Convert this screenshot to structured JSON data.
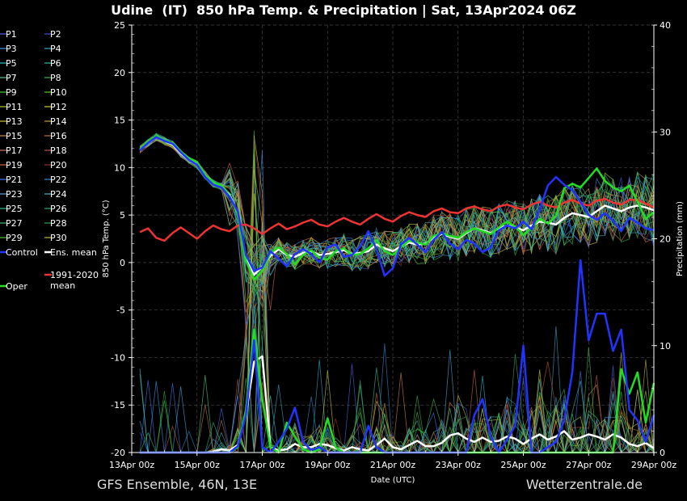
{
  "header": {
    "title": "Udine  (IT)  850 hPa Temp. & Precipitation | Sat, 13Apr2024 06Z"
  },
  "footer": {
    "model": "GFS Ensemble, 46N, 13E",
    "source": "Wetterzentrale.de"
  },
  "colors": {
    "background": "#000000",
    "grid": "#444444",
    "oper": "#22dd22",
    "control": "#2233ff",
    "ens_mean": "#ffffff",
    "climate": "#ee3333"
  },
  "chart_data": {
    "type": "line",
    "xlabel": "Date (UTC)",
    "ylabel_left": "850 hPa Temp. (°C)",
    "ylabel_right": "Precipitation (mm)",
    "ylim_left": [
      -20,
      25
    ],
    "ylim_right": [
      0,
      40
    ],
    "yticks_left": [
      -20,
      -15,
      -10,
      -5,
      0,
      5,
      10,
      15,
      20,
      25
    ],
    "yticks_right": [
      0,
      10,
      20,
      30,
      40
    ],
    "x_range_days": [
      0,
      16
    ],
    "x_ticks": [
      {
        "day": 0,
        "label": "13Apr 00z"
      },
      {
        "day": 2,
        "label": "15Apr 00z"
      },
      {
        "day": 4,
        "label": "17Apr 00z"
      },
      {
        "day": 6,
        "label": "19Apr 00z"
      },
      {
        "day": 8,
        "label": "21Apr 00z"
      },
      {
        "day": 10,
        "label": "23Apr 00z"
      },
      {
        "day": 12,
        "label": "25Apr 00z"
      },
      {
        "day": 14,
        "label": "27Apr 00z"
      },
      {
        "day": 16,
        "label": "29Apr 00z"
      }
    ],
    "grid": true,
    "legend_placement": "left",
    "legend": [
      {
        "name": "P1",
        "color": "#4466ee"
      },
      {
        "name": "P2",
        "color": "#3355dd"
      },
      {
        "name": "P3",
        "color": "#4499ee"
      },
      {
        "name": "P4",
        "color": "#33aacc"
      },
      {
        "name": "P5",
        "color": "#33bbcc"
      },
      {
        "name": "P6",
        "color": "#33bb99"
      },
      {
        "name": "P7",
        "color": "#44cc88"
      },
      {
        "name": "P8",
        "color": "#33bb55"
      },
      {
        "name": "P9",
        "color": "#44cc44"
      },
      {
        "name": "P10",
        "color": "#55cc22"
      },
      {
        "name": "P11",
        "color": "#aacc33"
      },
      {
        "name": "P12",
        "color": "#cccc33"
      },
      {
        "name": "P13",
        "color": "#ddbb44"
      },
      {
        "name": "P14",
        "color": "#cc9944"
      },
      {
        "name": "P15",
        "color": "#cc8844"
      },
      {
        "name": "P16",
        "color": "#bb7733"
      },
      {
        "name": "P17",
        "color": "#cc7755"
      },
      {
        "name": "P18",
        "color": "#bb5544"
      },
      {
        "name": "P19",
        "color": "#cc6644"
      },
      {
        "name": "P20",
        "color": "#993322"
      },
      {
        "name": "P21",
        "color": "#4477ee"
      },
      {
        "name": "P22",
        "color": "#3388cc"
      },
      {
        "name": "P23",
        "color": "#44aadd"
      },
      {
        "name": "P24",
        "color": "#44bbcc"
      },
      {
        "name": "P25",
        "color": "#33bb88"
      },
      {
        "name": "P26",
        "color": "#33aa66"
      },
      {
        "name": "P27",
        "color": "#44bb55"
      },
      {
        "name": "P28",
        "color": "#33aa44"
      },
      {
        "name": "P29",
        "color": "#55bb44"
      },
      {
        "name": "P30",
        "color": "#bbbb44"
      },
      {
        "name": "Control",
        "color": "#2233ff"
      },
      {
        "name": "Ens. mean",
        "color": "#ffffff"
      },
      {
        "name": "1991-2020\nmean",
        "color": "#ee3333"
      },
      {
        "name": "Oper",
        "color": "#22dd22"
      }
    ],
    "series": [
      {
        "name": "Ens. mean",
        "axis": "left",
        "x": [
          0.25,
          0.5,
          0.75,
          1,
          1.25,
          1.5,
          1.75,
          2,
          2.25,
          2.5,
          2.75,
          3,
          3.25,
          3.5,
          3.75,
          4,
          4.25,
          4.5,
          4.75,
          5,
          5.25,
          5.5,
          5.75,
          6,
          6.25,
          6.5,
          6.75,
          7,
          7.25,
          7.5,
          7.75,
          8,
          8.25,
          8.5,
          8.75,
          9,
          9.25,
          9.5,
          9.75,
          10,
          10.25,
          10.5,
          10.75,
          11,
          11.25,
          11.5,
          11.75,
          12,
          12.25,
          12.5,
          12.75,
          13,
          13.25,
          13.5,
          13.75,
          14,
          14.25,
          14.5,
          14.75,
          15,
          15.25,
          15.5,
          15.75,
          16
        ],
        "y": [
          11.9,
          12.6,
          13.2,
          12.8,
          12.4,
          11.5,
          10.8,
          10.3,
          9.2,
          8.3,
          8.0,
          7.1,
          5.2,
          0.5,
          -1.3,
          -0.4,
          0.7,
          1.4,
          0.8,
          0.6,
          1.0,
          1.2,
          0.8,
          0.9,
          1.1,
          1.3,
          0.9,
          1.0,
          1.2,
          1.9,
          1.5,
          1.2,
          1.7,
          2.1,
          1.9,
          2.0,
          2.6,
          3.0,
          2.7,
          2.5,
          3.1,
          3.6,
          3.4,
          3.1,
          3.6,
          3.9,
          3.7,
          3.4,
          3.9,
          4.3,
          4.2,
          4.0,
          4.7,
          5.2,
          5.0,
          4.8,
          5.4,
          6.0,
          5.7,
          5.4,
          5.8,
          6.0,
          5.8,
          5.5
        ]
      },
      {
        "name": "1991-2020\nmean",
        "axis": "left",
        "x": [
          0.25,
          0.5,
          0.75,
          1,
          1.25,
          1.5,
          1.75,
          2,
          2.25,
          2.5,
          2.75,
          3,
          3.25,
          3.5,
          3.75,
          4,
          4.25,
          4.5,
          4.75,
          5,
          5.25,
          5.5,
          5.75,
          6,
          6.25,
          6.5,
          6.75,
          7,
          7.25,
          7.5,
          7.75,
          8,
          8.25,
          8.5,
          8.75,
          9,
          9.25,
          9.5,
          9.75,
          10,
          10.25,
          10.5,
          10.75,
          11,
          11.25,
          11.5,
          11.75,
          12,
          12.25,
          12.5,
          12.75,
          13,
          13.25,
          13.5,
          13.75,
          14,
          14.25,
          14.5,
          14.75,
          15,
          15.25,
          15.5,
          15.75,
          16
        ],
        "y": [
          3.2,
          3.6,
          2.6,
          2.3,
          3.1,
          3.7,
          3.1,
          2.5,
          3.3,
          3.9,
          3.5,
          3.3,
          3.9,
          4.0,
          3.6,
          3.0,
          3.6,
          4.1,
          3.5,
          3.8,
          4.2,
          4.5,
          4.0,
          3.8,
          4.3,
          4.7,
          4.3,
          4.0,
          4.6,
          5.1,
          4.6,
          4.3,
          4.9,
          5.3,
          5.0,
          4.8,
          5.4,
          5.7,
          5.3,
          5.2,
          5.7,
          5.9,
          5.6,
          5.4,
          5.9,
          6.1,
          5.8,
          5.6,
          6.1,
          6.4,
          6.0,
          5.8,
          6.3,
          6.6,
          6.2,
          6.0,
          6.5,
          6.7,
          6.3,
          6.1,
          6.6,
          6.6,
          6.2,
          5.8
        ]
      },
      {
        "name": "Oper",
        "axis": "left",
        "x": [
          0.25,
          0.5,
          0.75,
          1,
          1.25,
          1.5,
          1.75,
          2,
          2.25,
          2.5,
          2.75,
          3,
          3.25,
          3.5,
          3.75,
          4,
          4.25,
          4.5,
          4.75,
          5,
          5.25,
          5.5,
          5.75,
          6,
          6.25,
          6.5,
          6.75,
          7,
          7.25,
          7.5,
          7.75,
          8,
          8.25,
          8.5,
          8.75,
          9,
          9.25,
          9.5,
          9.75,
          10,
          10.25,
          10.5,
          10.75,
          11,
          11.25,
          11.5,
          11.75,
          12,
          12.25,
          12.5,
          12.75,
          13,
          13.25,
          13.5,
          13.75,
          14,
          14.25,
          14.5,
          14.75,
          15,
          15.25,
          15.5,
          15.75,
          16
        ],
        "y": [
          11.9,
          12.7,
          13.3,
          12.9,
          12.6,
          11.7,
          11.0,
          10.6,
          9.2,
          8.4,
          8.1,
          7.0,
          5.1,
          0.2,
          -1.8,
          -0.9,
          1.0,
          1.6,
          0.9,
          -0.2,
          0.8,
          1.3,
          0.5,
          0.3,
          1.2,
          1.5,
          0.8,
          0.9,
          1.5,
          2.4,
          1.2,
          0.8,
          1.6,
          2.3,
          2.1,
          1.9,
          2.8,
          3.1,
          2.8,
          2.6,
          3.2,
          3.6,
          3.3,
          3.0,
          3.7,
          4.3,
          3.8,
          2.9,
          3.7,
          4.6,
          4.1,
          4.9,
          7.8,
          8.3,
          7.9,
          8.9,
          9.9,
          8.6,
          7.9,
          7.5,
          8.1,
          6.4,
          4.6,
          5.3
        ]
      },
      {
        "name": "Control",
        "axis": "left",
        "x": [
          0.25,
          0.5,
          0.75,
          1,
          1.25,
          1.5,
          1.75,
          2,
          2.25,
          2.5,
          2.75,
          3,
          3.25,
          3.5,
          3.75,
          4,
          4.25,
          4.5,
          4.75,
          5,
          5.25,
          5.5,
          5.75,
          6,
          6.25,
          6.5,
          6.75,
          7,
          7.25,
          7.5,
          7.75,
          8,
          8.25,
          8.5,
          8.75,
          9,
          9.25,
          9.5,
          9.75,
          10,
          10.25,
          10.5,
          10.75,
          11,
          11.25,
          11.5,
          11.75,
          12,
          12.25,
          12.5,
          12.75,
          13,
          13.25,
          13.5,
          13.75,
          14,
          14.25,
          14.5,
          14.75,
          15,
          15.25,
          15.5,
          15.75,
          16
        ],
        "y": [
          11.8,
          12.6,
          13.2,
          12.8,
          12.5,
          11.6,
          10.8,
          10.3,
          9.0,
          8.2,
          7.9,
          6.9,
          5.4,
          0.8,
          -0.9,
          -0.5,
          1.2,
          0.4,
          -0.4,
          0.9,
          1.4,
          0.9,
          0.0,
          1.6,
          1.9,
          0.6,
          0.8,
          1.7,
          3.3,
          1.4,
          -1.4,
          -0.6,
          1.9,
          2.6,
          1.9,
          1.1,
          2.4,
          3.2,
          2.0,
          1.4,
          2.4,
          2.0,
          1.1,
          1.6,
          3.4,
          3.9,
          3.6,
          4.3,
          3.5,
          5.6,
          8.1,
          9.0,
          8.2,
          7.6,
          6.4,
          5.0,
          4.5,
          5.2,
          4.4,
          3.3,
          4.7,
          4.2,
          3.6,
          3.4
        ]
      },
      {
        "name": "Ens. mean precipitation",
        "axis": "right",
        "x": [
          0.25,
          0.5,
          0.75,
          1,
          1.25,
          1.5,
          1.75,
          2,
          2.25,
          2.5,
          2.75,
          3,
          3.25,
          3.5,
          3.75,
          4,
          4.25,
          4.5,
          4.75,
          5,
          5.25,
          5.5,
          5.75,
          6,
          6.25,
          6.5,
          6.75,
          7,
          7.25,
          7.5,
          7.75,
          8,
          8.25,
          8.5,
          8.75,
          9,
          9.25,
          9.5,
          9.75,
          10,
          10.25,
          10.5,
          10.75,
          11,
          11.25,
          11.5,
          11.75,
          12,
          12.25,
          12.5,
          12.75,
          13,
          13.25,
          13.5,
          13.75,
          14,
          14.25,
          14.5,
          14.75,
          15,
          15.25,
          15.5,
          15.75,
          16
        ],
        "y": [
          0,
          0,
          0,
          0,
          0,
          0,
          0,
          0,
          0,
          0.1,
          0.3,
          0.2,
          0.7,
          3.6,
          8.5,
          9.0,
          0.5,
          0.2,
          0.3,
          0.8,
          0.5,
          0.5,
          0.8,
          0.7,
          0.4,
          0.2,
          0.5,
          0.3,
          0.2,
          0.7,
          1.3,
          0.5,
          0.3,
          0.7,
          1.1,
          0.6,
          0.6,
          0.9,
          1.6,
          1.8,
          1.3,
          1.0,
          1.4,
          1.0,
          1.1,
          1.5,
          1.3,
          0.8,
          1.3,
          1.7,
          1.2,
          1.5,
          2.0,
          1.2,
          1.4,
          1.7,
          1.5,
          1.2,
          1.7,
          1.4,
          0.8,
          0.6,
          0.9,
          0.4
        ]
      },
      {
        "name": "Oper precipitation",
        "axis": "right",
        "x": [
          0.25,
          0.5,
          0.75,
          1,
          1.25,
          1.5,
          1.75,
          2,
          2.25,
          2.5,
          2.75,
          3,
          3.25,
          3.5,
          3.75,
          4,
          4.25,
          4.5,
          4.75,
          5,
          5.25,
          5.5,
          5.75,
          6,
          6.25,
          6.5,
          6.75,
          7,
          7.25,
          7.5,
          7.75,
          8,
          8.25,
          8.5,
          8.75,
          9,
          9.25,
          9.5,
          9.75,
          10,
          10.25,
          10.5,
          10.75,
          11,
          11.25,
          11.5,
          11.75,
          12,
          12.25,
          12.5,
          12.75,
          13,
          13.25,
          13.5,
          13.75,
          14,
          14.25,
          14.5,
          14.75,
          15,
          15.25,
          15.5,
          15.75,
          16
        ],
        "y": [
          0,
          0,
          0,
          0,
          0,
          0,
          0,
          0,
          0,
          0,
          0,
          0,
          0.5,
          4.0,
          11.5,
          5.0,
          0.5,
          0,
          2.8,
          1.5,
          0.3,
          0,
          0.3,
          3.2,
          0.5,
          0,
          0,
          0,
          0,
          0,
          0,
          0,
          0,
          0,
          0,
          0,
          0,
          0,
          0,
          0,
          0,
          0,
          0,
          0,
          0,
          0,
          0,
          0,
          0,
          0,
          0,
          0,
          0,
          0,
          0,
          0,
          0,
          0,
          0,
          7.8,
          5.5,
          7.5,
          2.8,
          6.5
        ]
      },
      {
        "name": "Control precipitation",
        "axis": "right",
        "x": [
          0.25,
          0.5,
          0.75,
          1,
          1.25,
          1.5,
          1.75,
          2,
          2.25,
          2.5,
          2.75,
          3,
          3.25,
          3.5,
          3.75,
          4,
          4.25,
          4.5,
          4.75,
          5,
          5.25,
          5.5,
          5.75,
          6,
          6.25,
          6.5,
          6.75,
          7,
          7.25,
          7.5,
          7.75,
          8,
          8.25,
          8.5,
          8.75,
          9,
          9.25,
          9.5,
          9.75,
          10,
          10.25,
          10.5,
          10.75,
          11,
          11.25,
          11.5,
          11.75,
          12,
          12.25,
          12.5,
          12.75,
          13,
          13.25,
          13.5,
          13.75,
          14,
          14.25,
          14.5,
          14.75,
          15,
          15.25,
          15.5,
          15.75,
          16
        ],
        "y": [
          0,
          0,
          0,
          0,
          0,
          0,
          0,
          0,
          0,
          0,
          0,
          0,
          0.6,
          3.5,
          10.5,
          0.5,
          0,
          1.0,
          2.2,
          4.2,
          1.0,
          0.2,
          0.5,
          0,
          0,
          0,
          0,
          0,
          2.5,
          0.5,
          0,
          0,
          0,
          0,
          0,
          0,
          0,
          0,
          0,
          0,
          0,
          3.5,
          5.0,
          1.5,
          0,
          1.2,
          2.5,
          10.0,
          0,
          0,
          0.5,
          1.0,
          3.0,
          7.5,
          18.0,
          10.5,
          13.0,
          13.0,
          9.5,
          11.5,
          4.0,
          3.0,
          1.0,
          3.5
        ]
      }
    ]
  }
}
